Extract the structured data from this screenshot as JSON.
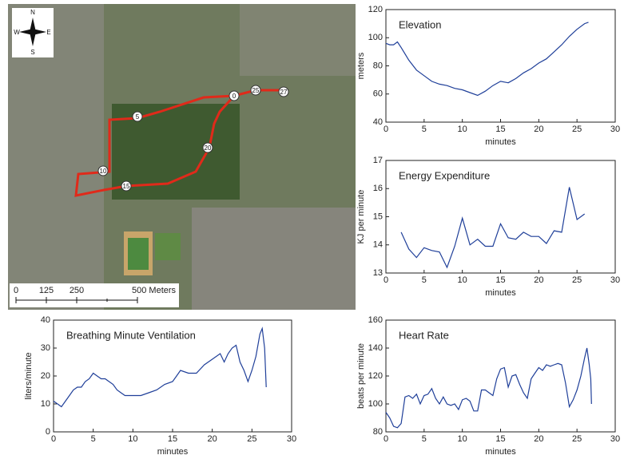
{
  "chart_data": [
    {
      "type": "line",
      "title": "Elevation",
      "xlabel": "minutes",
      "ylabel": "meters",
      "color": "#1f3f99",
      "xlim": [
        0,
        30
      ],
      "xticks": [
        0,
        5,
        10,
        15,
        20,
        25,
        30
      ],
      "ylim": [
        40,
        120
      ],
      "yticks": [
        40,
        60,
        80,
        100,
        120
      ],
      "x": [
        0,
        0.5,
        1,
        1.5,
        2,
        3,
        4,
        5,
        6,
        7,
        8,
        9,
        10,
        11,
        12,
        13,
        14,
        15,
        16,
        17,
        18,
        19,
        20,
        21,
        22,
        23,
        24,
        25,
        26,
        26.5
      ],
      "values": [
        96,
        95,
        95,
        97,
        93,
        84,
        77,
        73,
        69,
        67,
        66,
        64,
        63,
        61,
        59,
        62,
        66,
        69,
        68,
        71,
        75,
        78,
        82,
        85,
        90,
        95,
        101,
        106,
        110,
        111
      ]
    },
    {
      "type": "line",
      "title": "Energy Expenditure",
      "xlabel": "minutes",
      "ylabel": "KJ per minute",
      "color": "#1f3f99",
      "xlim": [
        0,
        30
      ],
      "xticks": [
        0,
        5,
        10,
        15,
        20,
        25,
        30
      ],
      "ylim": [
        13,
        17
      ],
      "yticks": [
        13,
        14,
        15,
        16,
        17
      ],
      "x": [
        2,
        3,
        4,
        5,
        6,
        7,
        8,
        9,
        10,
        11,
        12,
        13,
        14,
        15,
        16,
        17,
        18,
        19,
        20,
        21,
        22,
        23,
        24,
        25,
        26
      ],
      "values": [
        14.45,
        13.85,
        13.55,
        13.9,
        13.8,
        13.75,
        13.2,
        13.95,
        14.95,
        14.0,
        14.2,
        13.95,
        13.95,
        14.75,
        14.25,
        14.2,
        14.45,
        14.3,
        14.3,
        14.05,
        14.5,
        14.45,
        16.05,
        14.9,
        15.1
      ]
    },
    {
      "type": "line",
      "title": "Breathing Minute Ventilation",
      "xlabel": "minutes",
      "ylabel": "liters/minute",
      "color": "#1f3f99",
      "xlim": [
        0,
        30
      ],
      "xticks": [
        0,
        5,
        10,
        15,
        20,
        25,
        30
      ],
      "ylim": [
        0,
        40
      ],
      "yticks": [
        0,
        10,
        20,
        30,
        40
      ],
      "x": [
        0,
        0.5,
        1,
        1.5,
        2,
        2.5,
        3,
        3.5,
        4,
        4.5,
        5,
        5.5,
        6,
        6.5,
        7,
        7.5,
        8,
        8.5,
        9,
        10,
        11,
        12,
        13,
        14,
        15,
        15.5,
        16,
        17,
        18,
        19,
        20,
        21,
        21.5,
        22,
        22.5,
        23,
        23.5,
        24,
        24.5,
        25,
        25.5,
        26,
        26.3,
        26.6,
        26.8
      ],
      "values": [
        11,
        10,
        9,
        11,
        13,
        15,
        16,
        16,
        18,
        19,
        21,
        20,
        19,
        19,
        18,
        17,
        15,
        14,
        13,
        13,
        13,
        14,
        15,
        17,
        18,
        20,
        22,
        21,
        21,
        24,
        26,
        28,
        25,
        28,
        30,
        31,
        25,
        22,
        18,
        22,
        27,
        35,
        37,
        30,
        16
      ]
    },
    {
      "type": "line",
      "title": "Heart Rate",
      "xlabel": "minutes",
      "ylabel": "beats per minute",
      "color": "#1f3f99",
      "xlim": [
        0,
        30
      ],
      "xticks": [
        0,
        5,
        10,
        15,
        20,
        25,
        30
      ],
      "ylim": [
        80,
        160
      ],
      "yticks": [
        80,
        100,
        120,
        140,
        160
      ],
      "x": [
        0,
        0.5,
        1,
        1.5,
        2,
        2.5,
        3,
        3.5,
        4,
        4.5,
        5,
        5.5,
        6,
        6.5,
        7,
        7.5,
        8,
        8.5,
        9,
        9.5,
        10,
        10.5,
        11,
        11.5,
        12,
        12.5,
        13,
        13.5,
        14,
        14.5,
        15,
        15.5,
        16,
        16.5,
        17,
        17.5,
        18,
        18.5,
        19,
        19.5,
        20,
        20.5,
        21,
        21.5,
        22,
        22.5,
        23,
        23.5,
        24,
        24.5,
        25,
        25.5,
        26,
        26.3,
        26.6,
        26.8,
        26.9
      ],
      "values": [
        94,
        90,
        84,
        83,
        86,
        105,
        106,
        104,
        107,
        100,
        106,
        107,
        111,
        104,
        100,
        105,
        100,
        99,
        100,
        96,
        103,
        104,
        102,
        95,
        95,
        110,
        110,
        108,
        106,
        118,
        125,
        126,
        112,
        120,
        121,
        114,
        108,
        104,
        118,
        122,
        126,
        124,
        128,
        127,
        128,
        129,
        128,
        115,
        98,
        103,
        110,
        120,
        133,
        140,
        128,
        118,
        100
      ]
    }
  ],
  "map": {
    "compass": [
      "N",
      "E",
      "S",
      "W"
    ],
    "route_markers": [
      "0",
      "25",
      "27",
      "5",
      "20",
      "10",
      "15"
    ],
    "scale_labels": [
      "0",
      "125",
      "250",
      "500 Meters"
    ]
  }
}
